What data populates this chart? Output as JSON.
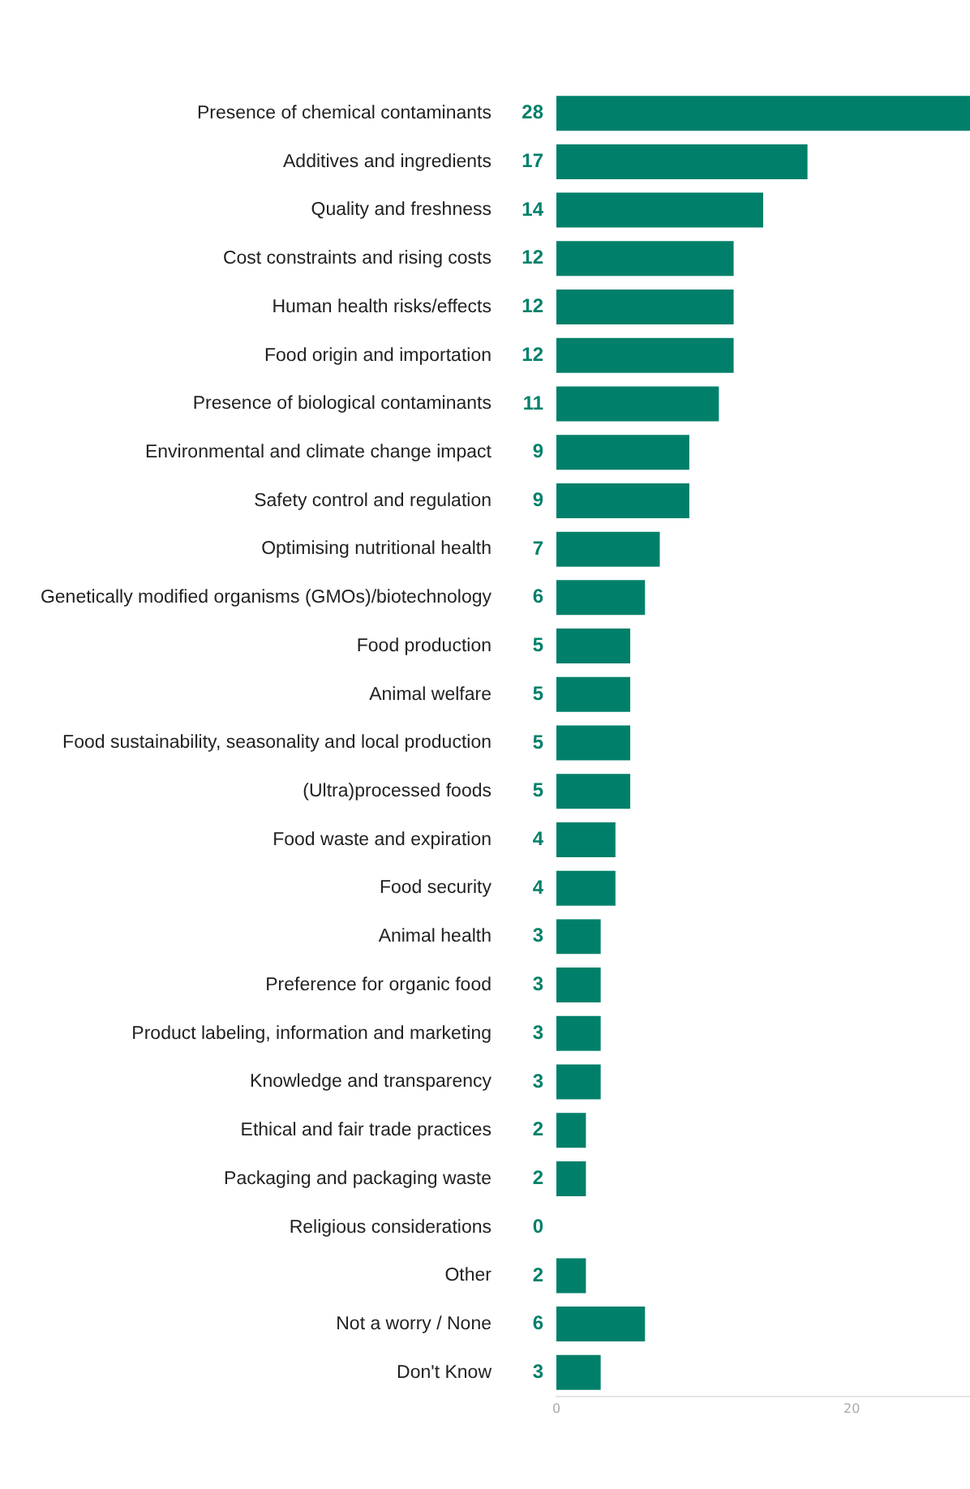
{
  "chart_data": {
    "type": "bar",
    "orientation": "horizontal",
    "categories": [
      "Presence of chemical contaminants",
      "Additives and ingredients",
      "Quality and freshness",
      "Cost constraints and rising costs",
      "Human health risks/effects",
      "Food origin and importation",
      "Presence of biological contaminants",
      "Environmental and climate change impact",
      "Safety control and regulation",
      "Optimising nutritional health",
      "Genetically modified organisms (GMOs)/biotechnology",
      "Food production",
      "Animal welfare",
      "Food sustainability, seasonality and local production",
      "(Ultra)processed foods",
      "Food waste and expiration",
      "Food security",
      "Animal health",
      "Preference for organic food",
      "Product labeling, information and marketing",
      "Knowledge and transparency",
      "Ethical and fair trade practices",
      "Packaging and packaging waste",
      "Religious considerations",
      "Other",
      "Not a worry / None",
      "Don't Know"
    ],
    "values": [
      28,
      17,
      14,
      12,
      12,
      12,
      11,
      9,
      9,
      7,
      6,
      5,
      5,
      5,
      5,
      4,
      4,
      3,
      3,
      3,
      3,
      2,
      2,
      0,
      2,
      6,
      3
    ],
    "color": "#00806a",
    "data_labels": true,
    "xlim": [
      0,
      28
    ],
    "xticks": [
      0,
      20
    ],
    "grid": false,
    "legend": false
  }
}
